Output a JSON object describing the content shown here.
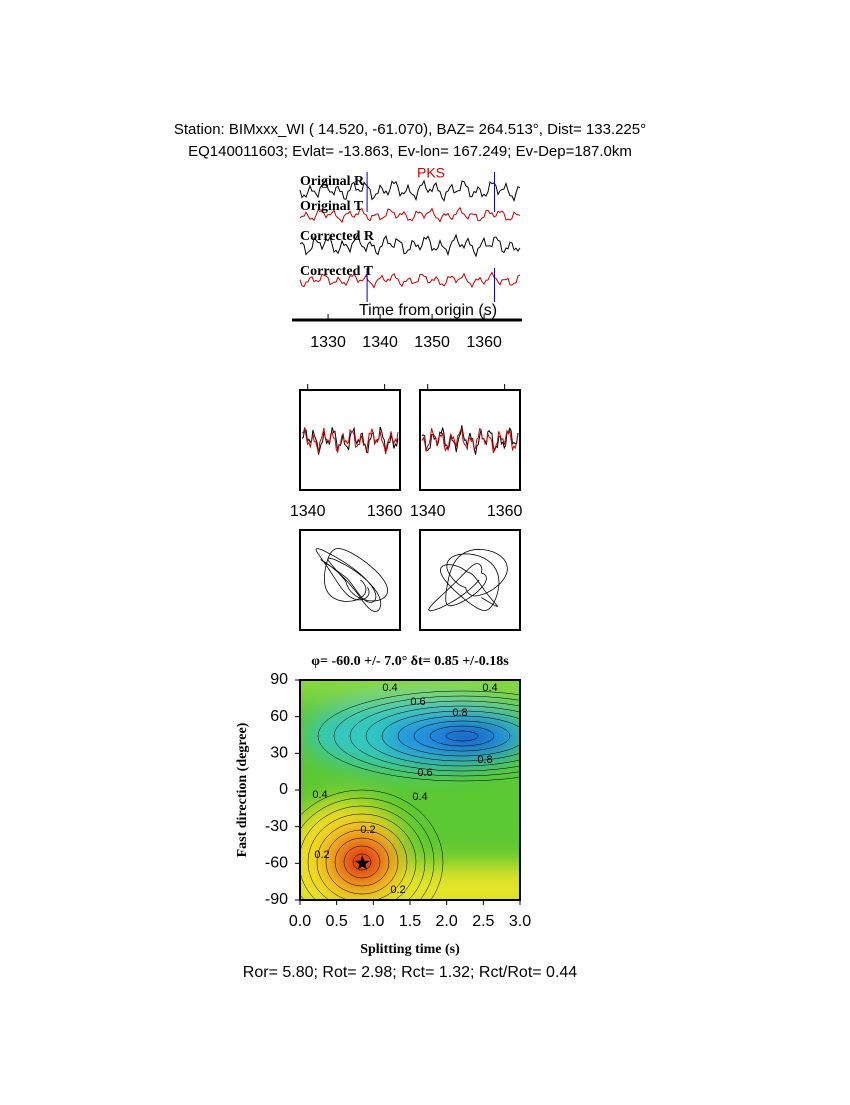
{
  "header": {
    "line1": "Station: BIMxxx_WI (  14.520,  -61.070), BAZ=  264.513°, Dist=  133.225°",
    "line2": "EQ140011603; Evlat= -13.863, Ev-lon= 167.249; Ev-Dep=187.0km"
  },
  "chart_data": [
    {
      "type": "traces",
      "labels": [
        "Original R",
        "Original T",
        "Corrected R",
        "Corrected T"
      ],
      "phase": "PKS",
      "xlabel": "Time from origin (s)",
      "xlim": [
        1324.6,
        1366.9
      ],
      "xticks": [
        1330,
        1340,
        1350,
        1360
      ],
      "window": [
        1337.5,
        1362
      ],
      "colors": [
        "#000000",
        "#cc0000"
      ],
      "marker_color": "#0000cc"
    },
    {
      "type": "waveform",
      "xlim": [
        1338,
        1364
      ],
      "xticks": [
        1340,
        1360
      ],
      "colors": [
        "#000000",
        "#cc0000"
      ]
    },
    {
      "type": "waveform",
      "xlim": [
        1338,
        1364
      ],
      "xticks": [
        1340,
        1360
      ],
      "colors": [
        "#000000",
        "#cc0000"
      ]
    },
    {
      "type": "contour",
      "title": "φ= -60.0 +/- 7.0° δt= 0.85 +/-0.18s",
      "xlabel": "Splitting time (s)",
      "ylabel": "Fast direction (degree)",
      "xlim": [
        0,
        3
      ],
      "ylim": [
        -90,
        90
      ],
      "xticks": [
        {
          "value": 0,
          "label": "0.0"
        },
        0.5,
        {
          "value": 1,
          "label": "1.0"
        },
        1.5,
        {
          "value": 2,
          "label": "2.0"
        },
        2.5,
        {
          "value": 3,
          "label": "3.0"
        }
      ],
      "yticks": [
        -90,
        -60,
        -30,
        0,
        30,
        60,
        90
      ],
      "contour_levels": [
        0.2,
        0.4,
        0.6,
        0.8
      ],
      "best": {
        "x": 0.85,
        "y": -60
      }
    }
  ],
  "footer": "Ror= 5.80; Rot= 2.98; Rct= 1.32; Rct/Rot= 0.44"
}
